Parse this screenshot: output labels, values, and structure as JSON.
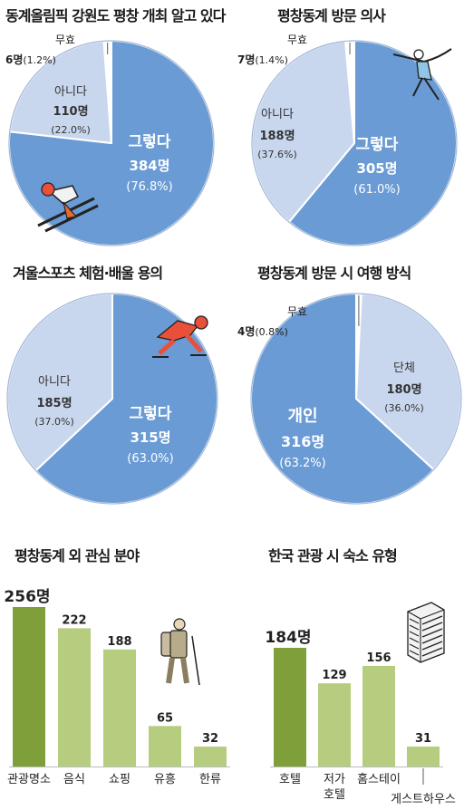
{
  "colors": {
    "yes": "#6a9bd4",
    "no": "#c9d7ee",
    "invalid": "#ffffff",
    "bar_top": "#7e9f3a",
    "bar": "#b6cd80",
    "edge": "#9fb6d8"
  },
  "chart_data": [
    {
      "type": "pie",
      "title": "동계올림픽 강원도 평창 개최 알고 있다",
      "slices": [
        {
          "label": "그렇다",
          "count": "384명",
          "pct": "(76.8%)",
          "value": 76.8,
          "color": "yes"
        },
        {
          "label": "아니다",
          "count": "110명",
          "pct": "(22.0%)",
          "value": 22.0,
          "color": "no"
        },
        {
          "label": "무효",
          "count": "6명",
          "pct": "(1.2%)",
          "value": 1.2,
          "color": "invalid"
        }
      ]
    },
    {
      "type": "pie",
      "title": "평창동계 방문 의사",
      "slices": [
        {
          "label": "그렇다",
          "count": "305명",
          "pct": "(61.0%)",
          "value": 61.0,
          "color": "yes"
        },
        {
          "label": "아니다",
          "count": "188명",
          "pct": "(37.6%)",
          "value": 37.6,
          "color": "no"
        },
        {
          "label": "무효",
          "count": "7명",
          "pct": "(1.4%)",
          "value": 1.4,
          "color": "invalid"
        }
      ]
    },
    {
      "type": "pie",
      "title": "겨울스포츠 체험·배울 용의",
      "slices": [
        {
          "label": "그렇다",
          "count": "315명",
          "pct": "(63.0%)",
          "value": 63.0,
          "color": "yes"
        },
        {
          "label": "아니다",
          "count": "185명",
          "pct": "(37.0%)",
          "value": 37.0,
          "color": "no"
        }
      ]
    },
    {
      "type": "pie",
      "title": "평창동계 방문 시 여행 방식",
      "slices": [
        {
          "label": "개인",
          "count": "316명",
          "pct": "(63.2%)",
          "value": 63.2,
          "color": "yes"
        },
        {
          "label": "단체",
          "count": "180명",
          "pct": "(36.0%)",
          "value": 36.0,
          "color": "no"
        },
        {
          "label": "무효",
          "count": "4명",
          "pct": "(0.8%)",
          "value": 0.8,
          "color": "invalid"
        }
      ]
    },
    {
      "type": "bar",
      "title": "평창동계 외 관심 분야",
      "categories": [
        "관광명소",
        "음식",
        "쇼핑",
        "유흥",
        "한류"
      ],
      "value_labels": [
        "256명",
        "222",
        "188",
        "65",
        "32"
      ],
      "values": [
        256,
        222,
        188,
        65,
        32
      ],
      "ylim": [
        0,
        256
      ]
    },
    {
      "type": "bar",
      "title": "한국 관광 시 숙소 유형",
      "categories": [
        "호텔",
        "저가\n호텔",
        "홈스테이",
        "게스트하우스"
      ],
      "value_labels": [
        "184명",
        "129",
        "156",
        "31"
      ],
      "values": [
        184,
        129,
        156,
        31
      ],
      "ylim": [
        0,
        184
      ]
    }
  ]
}
